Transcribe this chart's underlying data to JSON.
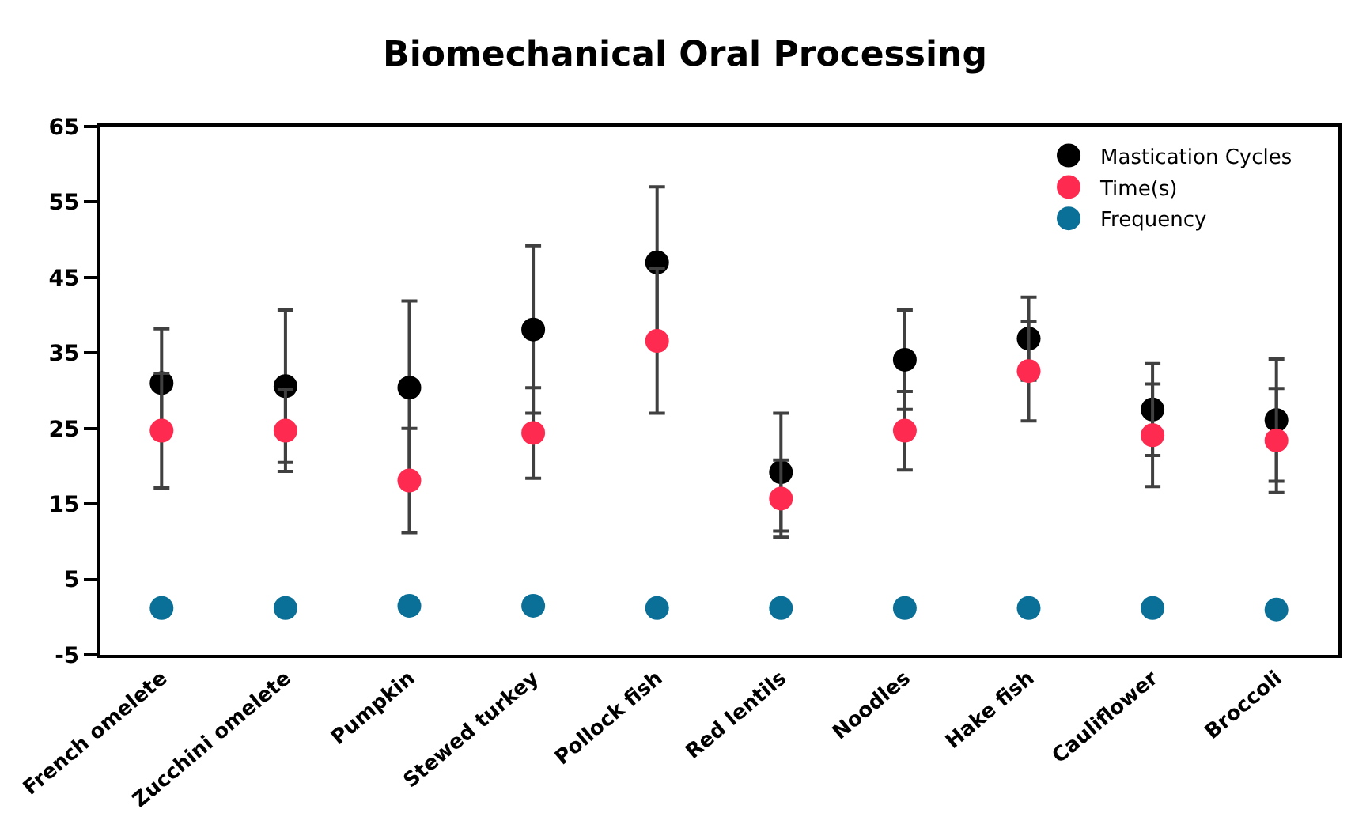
{
  "chart_data": {
    "type": "scatter",
    "title": "Biomechanical Oral Processing",
    "categories": [
      "French omelete",
      "Zucchini omelete",
      "Pumpkin",
      "Stewed turkey",
      "Pollock fish",
      "Red lentils",
      "Noodles",
      "Hake fish",
      "Cauliflower",
      "Broccoli"
    ],
    "series": [
      {
        "name": "Mastication Cycles",
        "color": "#000000",
        "values": [
          31.0,
          30.6,
          30.4,
          38.1,
          47.0,
          19.2,
          34.1,
          36.9,
          27.5,
          26.1
        ],
        "errors": [
          7.2,
          10.1,
          11.5,
          11.1,
          10.0,
          7.8,
          6.6,
          5.5,
          6.1,
          8.1
        ]
      },
      {
        "name": "Time(s)",
        "color": "#ff2a4f",
        "values": [
          24.7,
          24.7,
          18.1,
          24.4,
          36.6,
          15.7,
          24.7,
          32.6,
          24.1,
          23.4
        ],
        "errors": [
          7.6,
          5.4,
          6.9,
          6.0,
          9.6,
          5.1,
          5.2,
          6.6,
          6.8,
          6.9
        ]
      },
      {
        "name": "Frequency",
        "color": "#0a7097",
        "values": [
          1.2,
          1.2,
          1.5,
          1.5,
          1.2,
          1.2,
          1.2,
          1.2,
          1.2,
          1.0
        ]
      }
    ],
    "ylim": [
      -5,
      65
    ],
    "yticks": [
      -5,
      5,
      15,
      25,
      35,
      45,
      55,
      65
    ],
    "legend": "top right",
    "marker": "circle"
  }
}
